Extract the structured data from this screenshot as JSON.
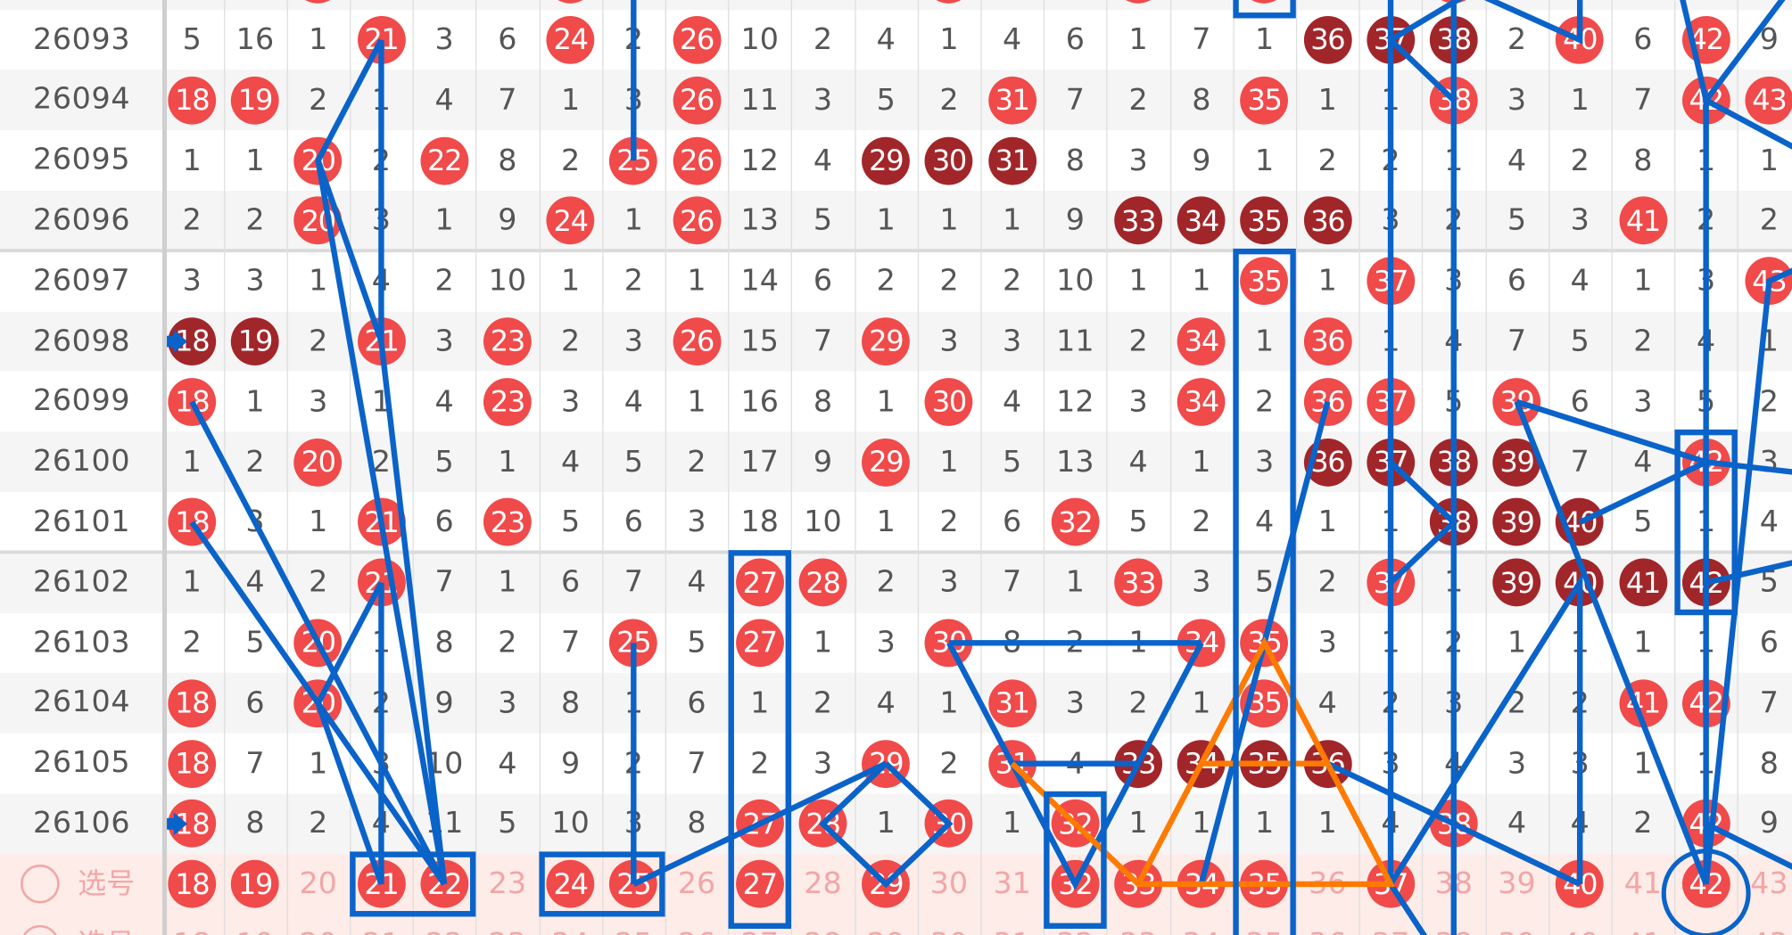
{
  "numbers": [
    "18",
    "19",
    "20",
    "21",
    "22",
    "23",
    "24",
    "25",
    "26",
    "27",
    "28",
    "29",
    "30",
    "31",
    "32",
    "33",
    "34",
    "35",
    "36",
    "37",
    "38",
    "39",
    "40",
    "41",
    "42",
    "43"
  ],
  "top_partial_hits": [
    20,
    24,
    30,
    33,
    35,
    38
  ],
  "rows": [
    {
      "period": "26093",
      "cells": [
        "5",
        "16",
        "1",
        "21",
        "3",
        "6",
        "24",
        "2",
        "26",
        "10",
        "2",
        "4",
        "1",
        "4",
        "6",
        "1",
        "7",
        "1",
        "36",
        "37",
        "38",
        "2",
        "40",
        "6",
        "42",
        "9"
      ],
      "hot": [
        21,
        24,
        26,
        40,
        42
      ],
      "repeat": [
        36,
        37,
        38
      ]
    },
    {
      "period": "26094",
      "cells": [
        "18",
        "19",
        "2",
        "1",
        "4",
        "7",
        "1",
        "3",
        "26",
        "11",
        "3",
        "5",
        "2",
        "31",
        "7",
        "2",
        "8",
        "35",
        "1",
        "1",
        "38",
        "3",
        "1",
        "7",
        "42",
        "43"
      ],
      "hot": [
        18,
        19,
        26,
        31,
        35,
        38,
        42,
        43
      ],
      "repeat": []
    },
    {
      "period": "26095",
      "cells": [
        "1",
        "1",
        "20",
        "2",
        "22",
        "8",
        "2",
        "25",
        "26",
        "12",
        "4",
        "29",
        "30",
        "31",
        "8",
        "3",
        "9",
        "1",
        "2",
        "2",
        "1",
        "4",
        "2",
        "8",
        "1",
        "1"
      ],
      "hot": [
        20,
        22,
        25,
        26
      ],
      "repeat": [
        29,
        30,
        31
      ]
    },
    {
      "period": "26096",
      "cells": [
        "2",
        "2",
        "20",
        "3",
        "1",
        "9",
        "24",
        "1",
        "26",
        "13",
        "5",
        "1",
        "1",
        "1",
        "9",
        "33",
        "34",
        "35",
        "36",
        "3",
        "2",
        "5",
        "3",
        "41",
        "2",
        "2"
      ],
      "hot": [
        20,
        24,
        26,
        41
      ],
      "repeat": [
        33,
        34,
        35,
        36
      ]
    },
    {
      "period": "26097",
      "cells": [
        "3",
        "3",
        "1",
        "4",
        "2",
        "10",
        "1",
        "2",
        "1",
        "14",
        "6",
        "2",
        "2",
        "2",
        "10",
        "1",
        "1",
        "35",
        "1",
        "37",
        "3",
        "6",
        "4",
        "1",
        "3",
        "43"
      ],
      "hot": [
        35,
        37,
        43
      ],
      "repeat": []
    },
    {
      "period": "26098",
      "cells": [
        "18",
        "19",
        "2",
        "21",
        "3",
        "23",
        "2",
        "3",
        "26",
        "15",
        "7",
        "29",
        "3",
        "3",
        "11",
        "2",
        "34",
        "1",
        "36",
        "1",
        "4",
        "7",
        "5",
        "2",
        "4",
        "1"
      ],
      "hot": [
        21,
        23,
        26,
        29,
        34,
        36
      ],
      "repeat": [
        18,
        19
      ]
    },
    {
      "period": "26099",
      "cells": [
        "18",
        "1",
        "3",
        "1",
        "4",
        "23",
        "3",
        "4",
        "1",
        "16",
        "8",
        "1",
        "30",
        "4",
        "12",
        "3",
        "34",
        "2",
        "36",
        "37",
        "5",
        "39",
        "6",
        "3",
        "5",
        "2"
      ],
      "hot": [
        18,
        23,
        30,
        34,
        36,
        37,
        39
      ],
      "repeat": []
    },
    {
      "period": "26100",
      "cells": [
        "1",
        "2",
        "20",
        "2",
        "5",
        "1",
        "4",
        "5",
        "2",
        "17",
        "9",
        "29",
        "1",
        "5",
        "13",
        "4",
        "1",
        "3",
        "36",
        "37",
        "38",
        "39",
        "7",
        "4",
        "42",
        "3"
      ],
      "hot": [
        20,
        29,
        42
      ],
      "repeat": [
        36,
        37,
        38,
        39
      ]
    },
    {
      "period": "26101",
      "cells": [
        "18",
        "3",
        "1",
        "21",
        "6",
        "23",
        "5",
        "6",
        "3",
        "18",
        "10",
        "1",
        "2",
        "6",
        "32",
        "5",
        "2",
        "4",
        "1",
        "1",
        "38",
        "39",
        "40",
        "5",
        "1",
        "4"
      ],
      "hot": [
        18,
        21,
        23,
        32
      ],
      "repeat": [
        38,
        39,
        40
      ]
    },
    {
      "period": "26102",
      "cells": [
        "1",
        "4",
        "2",
        "21",
        "7",
        "1",
        "6",
        "7",
        "4",
        "27",
        "28",
        "2",
        "3",
        "7",
        "1",
        "33",
        "3",
        "5",
        "2",
        "37",
        "1",
        "39",
        "40",
        "41",
        "42",
        "5"
      ],
      "hot": [
        21,
        27,
        28,
        33,
        37
      ],
      "repeat": [
        39,
        40,
        41,
        42
      ]
    },
    {
      "period": "26103",
      "cells": [
        "2",
        "5",
        "20",
        "1",
        "8",
        "2",
        "7",
        "25",
        "5",
        "27",
        "1",
        "3",
        "30",
        "8",
        "2",
        "1",
        "34",
        "35",
        "3",
        "1",
        "2",
        "1",
        "1",
        "1",
        "1",
        "6"
      ],
      "hot": [
        20,
        25,
        27,
        30,
        34,
        35
      ],
      "repeat": []
    },
    {
      "period": "26104",
      "cells": [
        "18",
        "6",
        "20",
        "2",
        "9",
        "3",
        "8",
        "1",
        "6",
        "1",
        "2",
        "4",
        "1",
        "31",
        "3",
        "2",
        "1",
        "35",
        "4",
        "2",
        "3",
        "2",
        "2",
        "41",
        "42",
        "7"
      ],
      "hot": [
        18,
        20,
        31,
        35,
        41,
        42
      ],
      "repeat": []
    },
    {
      "period": "26105",
      "cells": [
        "18",
        "7",
        "1",
        "3",
        "10",
        "4",
        "9",
        "2",
        "7",
        "2",
        "3",
        "29",
        "2",
        "31",
        "4",
        "33",
        "34",
        "35",
        "36",
        "3",
        "4",
        "3",
        "3",
        "1",
        "1",
        "8"
      ],
      "hot": [
        18,
        29,
        31
      ],
      "repeat": [
        33,
        34,
        35,
        36
      ]
    },
    {
      "period": "26106",
      "cells": [
        "18",
        "8",
        "2",
        "4",
        "11",
        "5",
        "10",
        "3",
        "8",
        "27",
        "28",
        "1",
        "30",
        "1",
        "32",
        "1",
        "1",
        "1",
        "1",
        "4",
        "38",
        "4",
        "4",
        "2",
        "42",
        "9"
      ],
      "hot": [
        18,
        27,
        28,
        30,
        32,
        38,
        42
      ],
      "repeat": []
    }
  ],
  "selection_rows": [
    {
      "label": "选号",
      "selected": [
        18,
        19,
        21,
        22,
        24,
        25,
        27,
        29,
        32,
        33,
        34,
        35,
        37,
        40,
        42
      ]
    },
    {
      "label": "选号",
      "selected": []
    }
  ],
  "colors": {
    "hot": "#f04a4a",
    "repeat": "#a1262a",
    "line_blue": "#0a63c9",
    "line_orange": "#ff7a00",
    "selection_bg": "#fdece8"
  }
}
